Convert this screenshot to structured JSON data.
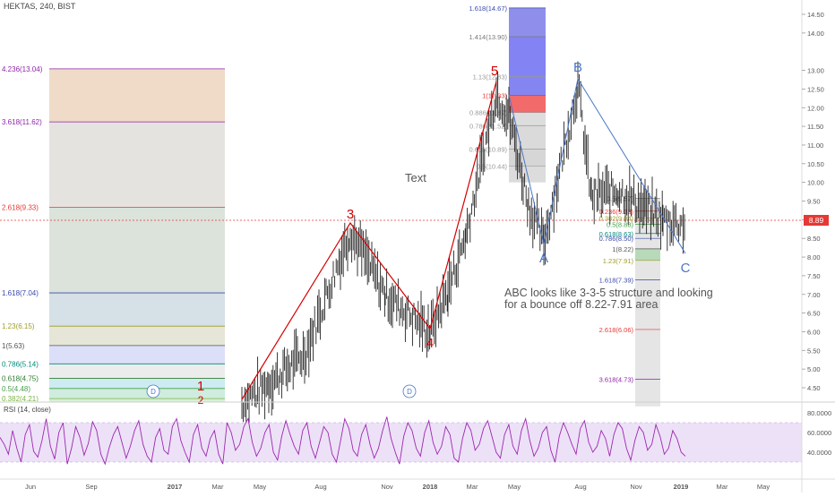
{
  "header": {
    "symbol": "HEKTAS, 240, BIST"
  },
  "rsi": {
    "label": "RSI (14, close)",
    "ticks": [
      "80.0000",
      "60.0000",
      "40.0000"
    ],
    "tick_values": [
      80,
      60,
      40
    ],
    "band": [
      30,
      70
    ],
    "values": [
      55,
      48,
      38,
      62,
      44,
      30,
      58,
      68,
      41,
      35,
      52,
      74,
      46,
      33,
      60,
      70,
      28,
      44,
      66,
      55,
      37,
      49,
      71,
      62,
      38,
      28,
      45,
      58,
      66,
      50,
      34,
      46,
      62,
      72,
      48,
      36,
      30,
      55,
      64,
      42,
      38,
      66,
      74,
      52,
      40,
      30,
      58,
      68,
      44,
      36,
      54,
      62,
      38,
      28,
      70,
      60,
      42,
      48,
      66,
      74,
      50,
      36,
      44,
      60,
      68,
      40,
      32,
      56,
      72,
      58,
      46,
      38,
      62,
      70,
      46,
      34,
      50,
      66,
      60,
      38,
      30,
      52,
      74,
      64,
      42,
      36,
      58,
      68,
      48,
      34,
      44,
      62,
      76,
      54,
      40,
      28,
      56,
      70,
      62,
      44,
      36,
      60,
      72,
      50,
      38,
      46,
      66,
      58,
      34,
      30,
      54,
      70,
      62,
      42,
      48,
      64,
      72,
      56,
      40,
      34,
      58,
      68,
      46,
      38,
      62,
      74,
      52,
      36,
      44,
      60,
      66,
      42,
      30,
      56,
      70,
      60,
      48,
      38,
      64,
      72,
      50,
      40,
      46,
      62,
      54,
      36,
      58,
      70,
      64,
      44,
      32,
      52,
      66,
      60,
      42,
      48,
      68,
      56,
      38,
      44,
      62,
      54,
      40,
      36
    ]
  },
  "right_axis": {
    "ticks": [
      "14.50",
      "14.00",
      "13.00",
      "12.50",
      "12.00",
      "11.50",
      "11.00",
      "10.50",
      "10.00",
      "9.50",
      "9.00",
      "8.50",
      "8.00",
      "7.50",
      "7.00",
      "6.50",
      "6.00",
      "5.50",
      "5.00",
      "4.50"
    ],
    "tick_values": [
      14.5,
      14.0,
      13.0,
      12.5,
      12.0,
      11.5,
      11.0,
      10.5,
      10.0,
      9.5,
      9.0,
      8.5,
      8.0,
      7.5,
      7.0,
      6.5,
      6.0,
      5.5,
      5.0,
      4.5
    ],
    "last_price": "8.89",
    "last_price_color": "#e53935"
  },
  "time_axis": {
    "labels": [
      "Jun",
      "Sep",
      "2017",
      "Mar",
      "May",
      "Aug",
      "Nov",
      "2018",
      "Mar",
      "May",
      "Aug",
      "Nov",
      "2019",
      "Mar",
      "May"
    ]
  },
  "left_fib": {
    "levels": [
      {
        "label": "4.236(13.04)",
        "price": 13.04,
        "color": "#8e24aa"
      },
      {
        "label": "3.618(11.62)",
        "price": 11.62,
        "color": "#8e24aa"
      },
      {
        "label": "2.618(9.33)",
        "price": 9.33,
        "color": "#e53935"
      },
      {
        "label": "1.618(7.04)",
        "price": 7.04,
        "color": "#3949ab"
      },
      {
        "label": "1.23(6.15)",
        "price": 6.15,
        "color": "#9e9d24"
      },
      {
        "label": "1(5.63)",
        "price": 5.63,
        "color": "#555555"
      },
      {
        "label": "0.786(5.14)",
        "price": 5.14,
        "color": "#00897b"
      },
      {
        "label": "0.618(4.75)",
        "price": 4.75,
        "color": "#2e7d32"
      },
      {
        "label": "0.5(4.48)",
        "price": 4.48,
        "color": "#43a047"
      },
      {
        "label": "0.382(4.21)",
        "price": 4.21,
        "color": "#7cb342"
      }
    ]
  },
  "top_fib": {
    "levels": [
      {
        "label": "1.618(14.67)",
        "price": 14.67,
        "color": "#3949ab"
      },
      {
        "label": "1.414(13.90)",
        "price": 13.9,
        "color": "#777777"
      },
      {
        "label": "1.13(12.83)",
        "price": 12.83,
        "color": "#999999"
      },
      {
        "label": "1(12.33)",
        "price": 12.33,
        "color": "#e53935"
      },
      {
        "label": "0.886(11.87)",
        "price": 11.87,
        "color": "#999999"
      },
      {
        "label": "0.786(11.52)",
        "price": 11.52,
        "color": "#999999"
      },
      {
        "label": "0.618(10.89)",
        "price": 10.89,
        "color": "#999999"
      },
      {
        "label": "0.5(10.44)",
        "price": 10.44,
        "color": "#999999"
      }
    ]
  },
  "right_fib": {
    "levels": [
      {
        "label": "0.5(9.57)",
        "price": 9.57,
        "color": "#777777"
      },
      {
        "label": "0.236(9.23)",
        "price": 9.23,
        "color": "#e53935"
      },
      {
        "label": "0.382(9.04)",
        "price": 9.04,
        "color": "#9e9d24"
      },
      {
        "label": "0.5(8.88)",
        "price": 8.88,
        "color": "#43a047"
      },
      {
        "label": "0.618(8.63)",
        "price": 8.63,
        "color": "#00897b"
      },
      {
        "label": "0.786(8.50)",
        "price": 8.5,
        "color": "#3949ab"
      },
      {
        "label": "1(8.22)",
        "price": 8.22,
        "color": "#555555"
      },
      {
        "label": "1.23(7.91)",
        "price": 7.91,
        "color": "#9e9d24"
      },
      {
        "label": "1.618(7.39)",
        "price": 7.39,
        "color": "#3949ab"
      },
      {
        "label": "2.618(6.06)",
        "price": 6.06,
        "color": "#e53935"
      },
      {
        "label": "3.618(4.73)",
        "price": 4.73,
        "color": "#8e24aa"
      }
    ]
  },
  "wave_labels": {
    "w1": "1",
    "w3": "3",
    "w4": "4",
    "w5": "5",
    "A": "A",
    "B": "B",
    "C": "C"
  },
  "annotations": {
    "text_label": "Text",
    "note_line1": "ABC looks like 3-3-5 structure and looking",
    "note_line2": "for a  bounce off 8.22-7.91 area",
    "dividend_badge": "D"
  },
  "colors": {
    "impulse": "#d50000",
    "correction": "#4a77c9",
    "candles": "#222222",
    "rsi_line": "#9c27b0",
    "rsi_band": "#ede1f7"
  },
  "chart_data": {
    "type": "line",
    "series": [
      {
        "name": "",
        "x": [
          "Jun",
          "Sep",
          "2017",
          "Mar",
          "May",
          "Aug",
          "Nov",
          "2018",
          "Mar",
          "May",
          "Aug",
          "Nov",
          "2019"
        ],
        "values": [
          4.1,
          4.0,
          4.0,
          3.9,
          4.4,
          7.9,
          6.8,
          6.9,
          10.5,
          11.5,
          11.0,
          9.2,
          8.89
        ]
      }
    ],
    "ylim": [
      4.3,
      14.6
    ],
    "waves": [
      {
        "label": "1",
        "price": 4.1
      },
      {
        "label": "3",
        "price": 8.8
      },
      {
        "label": "4",
        "price": 6.0
      },
      {
        "label": "5",
        "price": 12.6
      },
      {
        "label": "A",
        "price": 8.3
      },
      {
        "label": "B",
        "price": 12.7
      },
      {
        "label": "C",
        "price": 8.0
      }
    ]
  }
}
